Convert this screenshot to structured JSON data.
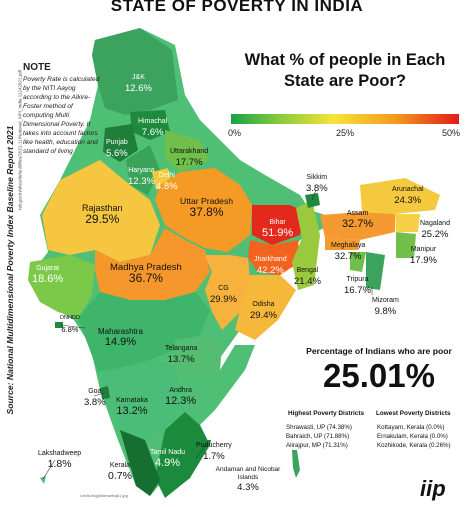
{
  "title": "STATE OF POVERTY IN INDIA",
  "question": [
    "What % of people in Each",
    "State are Poor?"
  ],
  "legend": {
    "ticks": [
      "0%",
      "25%",
      "50%"
    ],
    "colors": [
      "#17a34a",
      "#8ccc3c",
      "#f7e43a",
      "#f59a1c",
      "#e31a1c"
    ]
  },
  "note": {
    "heading": "NOTE",
    "body": "Poverty Rate is calculated by the NITI Aayog according to the Alkire-Foster method of computing Multi Dimensional Poverty. It takes into account factors like health, education and standard of living"
  },
  "source": "Source: National Multidimensional Poverty Index Baseline Report 2021",
  "source_url": "niti.gov.in/sites/default/files/2021-11/National_MPI_India-11242021.pdf",
  "states": [
    {
      "name": "J&K",
      "value": "12.6%"
    },
    {
      "name": "Himachal",
      "value": "7.6%"
    },
    {
      "name": "Punjab",
      "value": "5.6%"
    },
    {
      "name": "Uttarakhand",
      "value": "17.7%"
    },
    {
      "name": "Haryana",
      "value": "12.3%"
    },
    {
      "name": "Delhi",
      "value": "4.8%"
    },
    {
      "name": "Rajasthan",
      "value": "29.5%"
    },
    {
      "name": "Uttar Pradesh",
      "value": "37.8%"
    },
    {
      "name": "Bihar",
      "value": "51.9%"
    },
    {
      "name": "Sikkim",
      "value": "3.8%"
    },
    {
      "name": "Arunachal",
      "value": "24.3%"
    },
    {
      "name": "Assam",
      "value": "32.7%"
    },
    {
      "name": "Nagaland",
      "value": "25.2%"
    },
    {
      "name": "Meghalaya",
      "value": "32.7%"
    },
    {
      "name": "Manipur",
      "value": "17.9%"
    },
    {
      "name": "Tripura",
      "value": "16.7%"
    },
    {
      "name": "Mizoram",
      "value": "9.8%"
    },
    {
      "name": "Jharkhand",
      "value": "42.2%"
    },
    {
      "name": "Bengal",
      "value": "21.4%"
    },
    {
      "name": "Gujarat",
      "value": "18.6%"
    },
    {
      "name": "Madhya Pradesh",
      "value": "36.7%"
    },
    {
      "name": "CG",
      "value": "29.9%"
    },
    {
      "name": "Odisha",
      "value": "29.4%"
    },
    {
      "name": "DNHDD",
      "value": "6.8%"
    },
    {
      "name": "Maharashtra",
      "value": "14.9%"
    },
    {
      "name": "Telangana",
      "value": "13.7%"
    },
    {
      "name": "Goa",
      "value": "3.8%"
    },
    {
      "name": "Karnataka",
      "value": "13.2%"
    },
    {
      "name": "Andhra",
      "value": "12.3%"
    },
    {
      "name": "Lakshadweep",
      "value": "1.8%"
    },
    {
      "name": "Kerala",
      "value": "0.7%"
    },
    {
      "name": "Tamil Nadu",
      "value": "4.9%"
    },
    {
      "name": "Puducherry",
      "value": "1.7%"
    },
    {
      "name": "Andaman and Nicobar Islands",
      "value": "4.3%"
    }
  ],
  "summary": {
    "label": "Percentage of Indians who are poor",
    "value": "25.01%"
  },
  "highest": {
    "heading": "Highest Poverty Districts",
    "items": [
      "Shrawasti, UP (74.38%)",
      "Bahraich, UP (71.88%)",
      "Alirajpur, MP (71.31%)"
    ]
  },
  "lowest": {
    "heading": "Lowest Poverty Districts",
    "items": [
      "Kottayam, Kerala (0.0%)",
      "Ernakulam, Kerala (0.0%)",
      "Kozhikode, Kerala (0.26%)"
    ]
  },
  "logo": "iip",
  "bottom_url": "i.redd.it/qgt3nbnwibq61.jpg"
}
